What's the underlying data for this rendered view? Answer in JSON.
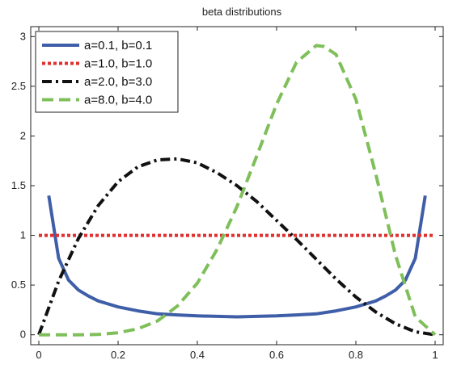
{
  "chart_data": {
    "type": "line",
    "title": "beta distributions",
    "xlabel": "",
    "ylabel": "",
    "xlim": [
      0,
      1
    ],
    "ylim": [
      0,
      3
    ],
    "x_ticks": [
      "0",
      "0.2",
      "0.4",
      "0.6",
      "0.8",
      "1"
    ],
    "y_ticks": [
      "0",
      "0.5",
      "1",
      "1.5",
      "2",
      "2.5",
      "3"
    ],
    "x_tick_values": [
      0,
      0.2,
      0.4,
      0.6,
      0.8,
      1
    ],
    "y_tick_values": [
      0,
      0.5,
      1,
      1.5,
      2,
      2.5,
      3
    ],
    "legend_position": "top-left",
    "grid": false,
    "series": [
      {
        "name": "a=0.1, b=0.1",
        "color": "#3f5ea8",
        "style": "solid",
        "x": [
          0.025,
          0.05,
          0.075,
          0.1,
          0.125,
          0.15,
          0.2,
          0.25,
          0.3,
          0.35,
          0.4,
          0.45,
          0.5,
          0.55,
          0.6,
          0.65,
          0.7,
          0.75,
          0.8,
          0.85,
          0.875,
          0.9,
          0.925,
          0.95,
          0.975
        ],
        "values": [
          1.4,
          0.77,
          0.55,
          0.45,
          0.39,
          0.34,
          0.28,
          0.24,
          0.21,
          0.2,
          0.19,
          0.185,
          0.18,
          0.185,
          0.19,
          0.2,
          0.21,
          0.24,
          0.28,
          0.34,
          0.39,
          0.45,
          0.55,
          0.77,
          1.4
        ]
      },
      {
        "name": "a=1.0, b=1.0",
        "color": "#e03030",
        "style": "dotted",
        "x": [
          0,
          1
        ],
        "values": [
          1,
          1
        ]
      },
      {
        "name": "a=2.0, b=3.0",
        "color": "#111111",
        "style": "dashdot",
        "x": [
          0,
          0.05,
          0.1,
          0.15,
          0.2,
          0.25,
          0.3,
          0.35,
          0.4,
          0.45,
          0.5,
          0.55,
          0.6,
          0.65,
          0.7,
          0.75,
          0.8,
          0.85,
          0.9,
          0.95,
          1
        ],
        "values": [
          0,
          0.54,
          0.97,
          1.3,
          1.54,
          1.69,
          1.76,
          1.77,
          1.73,
          1.63,
          1.5,
          1.34,
          1.15,
          0.96,
          0.76,
          0.56,
          0.38,
          0.23,
          0.11,
          0.03,
          0
        ]
      },
      {
        "name": "a=8.0, b=4.0",
        "color": "#7fbf5a",
        "style": "dashed",
        "x": [
          0,
          0.05,
          0.1,
          0.15,
          0.2,
          0.25,
          0.3,
          0.35,
          0.4,
          0.45,
          0.5,
          0.55,
          0.6,
          0.65,
          0.7,
          0.72,
          0.75,
          0.8,
          0.85,
          0.9,
          0.95,
          1
        ],
        "values": [
          0,
          0,
          0,
          0.003,
          0.02,
          0.06,
          0.14,
          0.29,
          0.52,
          0.86,
          1.29,
          1.8,
          2.32,
          2.74,
          2.91,
          2.9,
          2.82,
          2.37,
          1.62,
          0.8,
          0.18,
          0
        ]
      }
    ]
  }
}
